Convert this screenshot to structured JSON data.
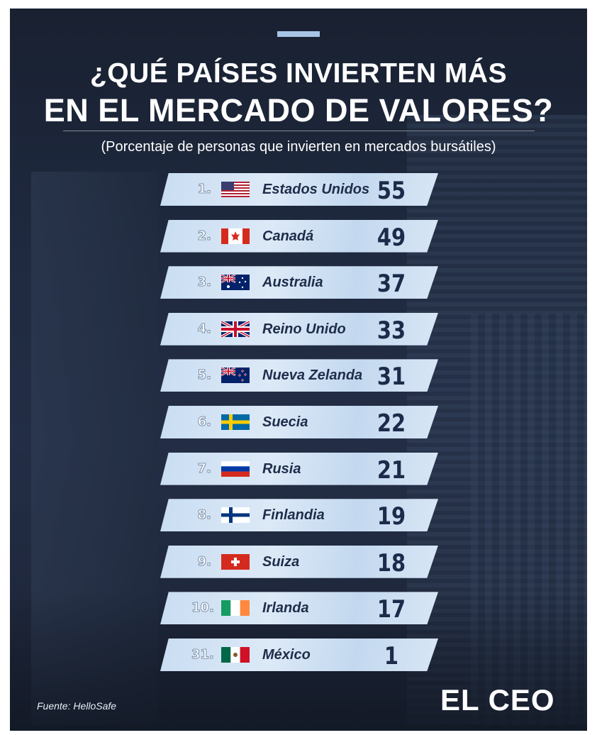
{
  "header": {
    "title_line1": "¿QUÉ PAÍSES INVIERTEN MÁS",
    "title_line2": "EN EL MERCADO DE VALORES?",
    "subtitle": "(Porcentaje de personas que invierten en mercados bursátiles)"
  },
  "footer": {
    "source": "Fuente: HelloSafe",
    "logo": "EL CEO"
  },
  "colors": {
    "accent": "#a7c4e6",
    "tape": "#d0e1f4",
    "text_dark": "#1f2d4a"
  },
  "chart_data": {
    "type": "table",
    "categories": [
      "Estados Unidos",
      "Canadá",
      "Australia",
      "Reino Unido",
      "Nueva Zelanda",
      "Suecia",
      "Rusia",
      "Finlandia",
      "Suiza",
      "Irlanda",
      "México"
    ],
    "ranks": [
      "1.",
      "2.",
      "3.",
      "4.",
      "5.",
      "6.",
      "7.",
      "8.",
      "9.",
      "10.",
      "31."
    ],
    "values": [
      55,
      49,
      37,
      33,
      31,
      22,
      21,
      19,
      18,
      17,
      1
    ],
    "flags": [
      "us-flag-icon",
      "canada-flag-icon",
      "australia-flag-icon",
      "uk-flag-icon",
      "new-zealand-flag-icon",
      "sweden-flag-icon",
      "russia-flag-icon",
      "finland-flag-icon",
      "switzerland-flag-icon",
      "ireland-flag-icon",
      "mexico-flag-icon"
    ]
  }
}
